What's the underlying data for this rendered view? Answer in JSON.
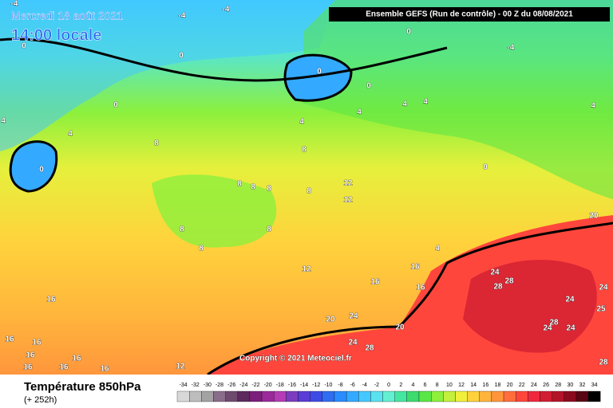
{
  "header": {
    "date": "Mercredi 18 août 2021",
    "time": "14:00 locale",
    "run": "Ensemble GEFS  (Run de contrôle)  -  00 Z du 08/08/2021"
  },
  "copyright": "Copyright © 2021 Meteociel.fr",
  "footer": {
    "title": "Température 850hPa",
    "lead": "(+ 252h)"
  },
  "map_labels": [
    "-4",
    "-4",
    "-4",
    "0",
    "0",
    "0",
    "0",
    "0",
    "0",
    "0",
    "0",
    "0",
    "-4",
    "4",
    "4",
    "4",
    "4",
    "4",
    "4",
    "4",
    "4",
    "8",
    "8",
    "8",
    "8",
    "8",
    "8",
    "8",
    "8",
    "8",
    "12",
    "12",
    "12",
    "12",
    "16",
    "16",
    "16",
    "16",
    "16",
    "16",
    "16",
    "16",
    "16",
    "16",
    "16",
    "20",
    "20",
    "20",
    "24",
    "24",
    "24",
    "24",
    "24",
    "24",
    "24",
    "25",
    "28",
    "28",
    "28",
    "28",
    "28"
  ],
  "scale": {
    "ticks": [
      -34,
      -32,
      -30,
      -28,
      -26,
      -24,
      -22,
      -20,
      -18,
      -16,
      -14,
      -12,
      -10,
      -8,
      -6,
      -4,
      -2,
      0,
      2,
      4,
      6,
      8,
      10,
      12,
      14,
      16,
      18,
      20,
      22,
      24,
      26,
      28,
      30,
      32,
      34
    ],
    "colors": [
      "#d8d8d8",
      "#bdbdbd",
      "#a3a3a3",
      "#8a6d8a",
      "#6e4b6e",
      "#5c2a5c",
      "#7a1f7a",
      "#9a2a9a",
      "#b43cb4",
      "#7d3cbf",
      "#5a3cd6",
      "#3c4be6",
      "#2f6ef0",
      "#2a8cff",
      "#33aaff",
      "#45c8ff",
      "#5ae2f0",
      "#63f0d2",
      "#45e6a0",
      "#3cdc6e",
      "#5ae646",
      "#8cf03c",
      "#c3f03c",
      "#f0f03c",
      "#ffd23c",
      "#ffb43c",
      "#ff963c",
      "#ff6e3c",
      "#ff463c",
      "#f0283c",
      "#d21e32",
      "#b41428",
      "#8c0a1e",
      "#5a0514",
      "#000000"
    ]
  }
}
